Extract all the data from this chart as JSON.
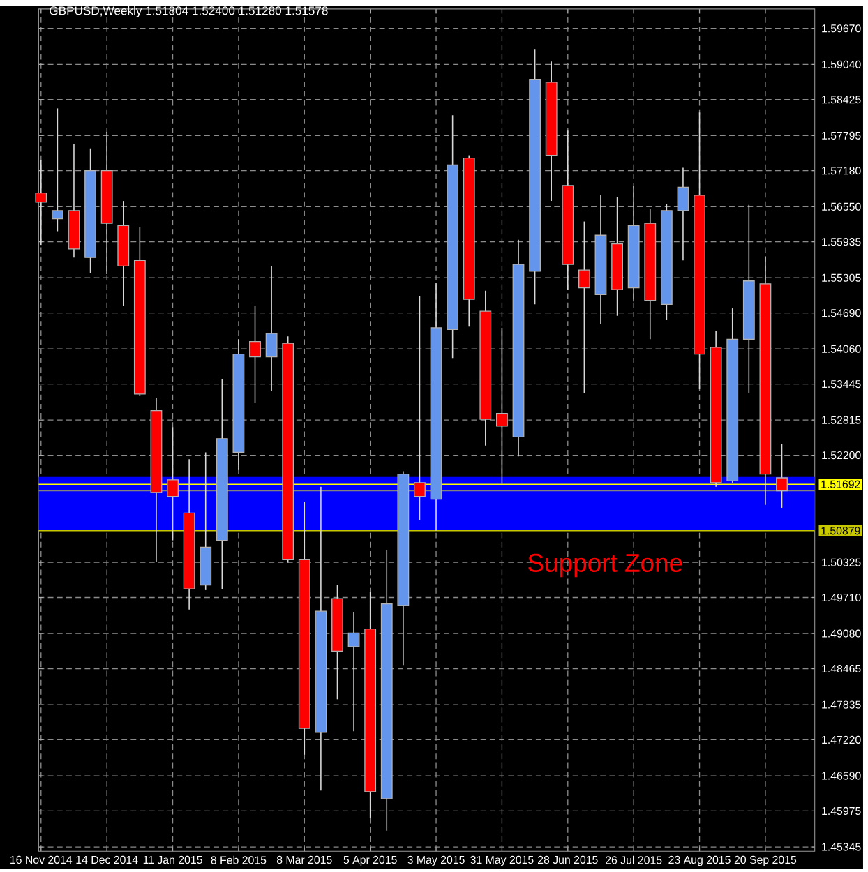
{
  "chart_data": {
    "type": "candlestick",
    "title": "GBPUSD,Weekly  1.51804 1.52400 1.51280 1.51578",
    "x": [
      "2014-11-16",
      "2014-11-23",
      "2014-11-30",
      "2014-12-07",
      "2014-12-14",
      "2014-12-21",
      "2014-12-28",
      "2015-01-04",
      "2015-01-11",
      "2015-01-18",
      "2015-01-25",
      "2015-02-01",
      "2015-02-08",
      "2015-02-15",
      "2015-02-22",
      "2015-03-01",
      "2015-03-08",
      "2015-03-15",
      "2015-03-22",
      "2015-03-29",
      "2015-04-05",
      "2015-04-12",
      "2015-04-19",
      "2015-04-26",
      "2015-05-03",
      "2015-05-10",
      "2015-05-17",
      "2015-05-24",
      "2015-05-31",
      "2015-06-07",
      "2015-06-14",
      "2015-06-21",
      "2015-06-28",
      "2015-07-05",
      "2015-07-12",
      "2015-07-19",
      "2015-07-26",
      "2015-08-02",
      "2015-08-09",
      "2015-08-16",
      "2015-08-23",
      "2015-08-30",
      "2015-09-06",
      "2015-09-13",
      "2015-09-20",
      "2015-09-27"
    ],
    "ohlc": [
      [
        1.5679,
        1.5737,
        1.5588,
        1.5663
      ],
      [
        1.5634,
        1.5827,
        1.5612,
        1.5648
      ],
      [
        1.5648,
        1.5764,
        1.5566,
        1.5581
      ],
      [
        1.5566,
        1.5757,
        1.5539,
        1.5718
      ],
      [
        1.5718,
        1.5786,
        1.5537,
        1.5626
      ],
      [
        1.5622,
        1.5665,
        1.5481,
        1.5551
      ],
      [
        1.5561,
        1.5619,
        1.5324,
        1.5327
      ],
      [
        1.5298,
        1.532,
        1.5034,
        1.5155
      ],
      [
        1.5177,
        1.5269,
        1.5071,
        1.5148
      ],
      [
        1.5119,
        1.5213,
        1.495,
        1.4986
      ],
      [
        1.4993,
        1.5225,
        1.4984,
        1.5059
      ],
      [
        1.5071,
        1.5353,
        1.4986,
        1.5249
      ],
      [
        1.5225,
        1.5423,
        1.5194,
        1.5397
      ],
      [
        1.5419,
        1.5481,
        1.5312,
        1.5392
      ],
      [
        1.5392,
        1.5551,
        1.5332,
        1.5433
      ],
      [
        1.5416,
        1.5428,
        1.5032,
        1.5037
      ],
      [
        1.5037,
        1.5138,
        1.4696,
        1.4742
      ],
      [
        1.4735,
        1.5165,
        1.4633,
        1.4947
      ],
      [
        1.4969,
        1.4993,
        1.4793,
        1.4877
      ],
      [
        1.4885,
        1.4945,
        1.4737,
        1.4909
      ],
      [
        1.4916,
        1.4981,
        1.4585,
        1.4631
      ],
      [
        1.4619,
        1.5054,
        1.4563,
        1.496
      ],
      [
        1.4957,
        1.5192,
        1.4853,
        1.5187
      ],
      [
        1.5172,
        1.5498,
        1.5107,
        1.5148
      ],
      [
        1.5143,
        1.5522,
        1.5088,
        1.5443
      ],
      [
        1.544,
        1.5815,
        1.539,
        1.5728
      ],
      [
        1.574,
        1.5745,
        1.5445,
        1.5493
      ],
      [
        1.5472,
        1.5508,
        1.5237,
        1.5283
      ],
      [
        1.5293,
        1.5443,
        1.517,
        1.5271
      ],
      [
        1.5252,
        1.5597,
        1.5218,
        1.5554
      ],
      [
        1.5542,
        1.5931,
        1.5484,
        1.5878
      ],
      [
        1.5873,
        1.5909,
        1.5665,
        1.5745
      ],
      [
        1.5692,
        1.5788,
        1.551,
        1.5554
      ],
      [
        1.5544,
        1.5629,
        1.5329,
        1.5513
      ],
      [
        1.5501,
        1.5675,
        1.545,
        1.5605
      ],
      [
        1.559,
        1.5672,
        1.5464,
        1.551
      ],
      [
        1.5513,
        1.5692,
        1.5489,
        1.5622
      ],
      [
        1.5626,
        1.5651,
        1.5423,
        1.5491
      ],
      [
        1.5484,
        1.566,
        1.5457,
        1.5648
      ],
      [
        1.5648,
        1.5723,
        1.5561,
        1.5689
      ],
      [
        1.5675,
        1.582,
        1.5336,
        1.5397
      ],
      [
        1.5409,
        1.5438,
        1.5165,
        1.5172
      ],
      [
        1.5175,
        1.5477,
        1.5172,
        1.5423
      ],
      [
        1.5423,
        1.5658,
        1.5329,
        1.5525
      ],
      [
        1.552,
        1.5568,
        1.5133,
        1.5187
      ],
      [
        1.51804,
        1.524,
        1.5128,
        1.51578
      ]
    ],
    "colors": [
      "#ff0000",
      "#6495ed",
      "#ff0000",
      "#6495ed",
      "#ff0000",
      "#ff0000",
      "#ff0000",
      "#ff0000",
      "#ff0000",
      "#ff0000",
      "#6495ed",
      "#6495ed",
      "#6495ed",
      "#ff0000",
      "#6495ed",
      "#ff0000",
      "#ff0000",
      "#6495ed",
      "#ff0000",
      "#6495ed",
      "#ff0000",
      "#6495ed",
      "#6495ed",
      "#ff0000",
      "#6495ed",
      "#6495ed",
      "#ff0000",
      "#ff0000",
      "#ff0000",
      "#6495ed",
      "#6495ed",
      "#ff0000",
      "#ff0000",
      "#ff0000",
      "#6495ed",
      "#ff0000",
      "#6495ed",
      "#ff0000",
      "#6495ed",
      "#6495ed",
      "#ff0000",
      "#ff0000",
      "#6495ed",
      "#6495ed",
      "#ff0000",
      "#ff0000"
    ],
    "xlim": [
      "2014-11-15",
      "2015-10-11"
    ],
    "xticks": [
      {
        "value": "2014-11-16",
        "label": "16 Nov 2014"
      },
      {
        "value": "2014-12-14",
        "label": "14 Dec 2014"
      },
      {
        "value": "2015-01-11",
        "label": "11 Jan 2015"
      },
      {
        "value": "2015-02-08",
        "label": "8 Feb 2015"
      },
      {
        "value": "2015-03-08",
        "label": "8 Mar 2015"
      },
      {
        "value": "2015-04-05",
        "label": "5 Apr 2015"
      },
      {
        "value": "2015-05-03",
        "label": "3 May 2015"
      },
      {
        "value": "2015-05-31",
        "label": "31 May 2015"
      },
      {
        "value": "2015-06-28",
        "label": "28 Jun 2015"
      },
      {
        "value": "2015-07-26",
        "label": "26 Jul 2015"
      },
      {
        "value": "2015-08-23",
        "label": "23 Aug 2015"
      },
      {
        "value": "2015-09-20",
        "label": "20 Sep 2015"
      }
    ],
    "ylim": [
      1.4527,
      1.6001
    ],
    "yticks": [
      {
        "value": 1.5967,
        "label": "1.59670"
      },
      {
        "value": 1.5904,
        "label": "1.59040"
      },
      {
        "value": 1.58425,
        "label": "1.58425"
      },
      {
        "value": 1.57795,
        "label": "1.57795"
      },
      {
        "value": 1.5718,
        "label": "1.57180"
      },
      {
        "value": 1.5655,
        "label": "1.56550"
      },
      {
        "value": 1.55935,
        "label": "1.55935"
      },
      {
        "value": 1.55305,
        "label": "1.55305"
      },
      {
        "value": 1.5469,
        "label": "1.54690"
      },
      {
        "value": 1.5406,
        "label": "1.54060"
      },
      {
        "value": 1.53445,
        "label": "1.53445"
      },
      {
        "value": 1.52815,
        "label": "1.52815"
      },
      {
        "value": 1.522,
        "label": "1.52200"
      },
      {
        "value": 1.50955,
        "label": null
      },
      {
        "value": 1.50325,
        "label": "1.50325"
      },
      {
        "value": 1.4971,
        "label": "1.49710"
      },
      {
        "value": 1.4908,
        "label": "1.49080"
      },
      {
        "value": 1.48465,
        "label": "1.48465"
      },
      {
        "value": 1.47835,
        "label": "1.47835"
      },
      {
        "value": 1.4722,
        "label": "1.47220"
      },
      {
        "value": 1.4659,
        "label": "1.46590"
      },
      {
        "value": 1.45975,
        "label": "1.45975"
      },
      {
        "value": 1.45345,
        "label": "1.45345"
      }
    ],
    "grid": true,
    "bands": [
      {
        "axis": "y",
        "from": 1.50879,
        "to": 1.5182,
        "label": "Support Zone",
        "color": "#0000ff"
      }
    ],
    "ref_lines": [
      {
        "axis": "y",
        "value": 1.51692,
        "label": "1.51692",
        "color": "#ffff00"
      },
      {
        "axis": "y",
        "value": 1.51578,
        "color": "#808080"
      },
      {
        "axis": "y",
        "value": 1.50879,
        "label": "1.50879",
        "color": "#c8c800"
      }
    ]
  }
}
